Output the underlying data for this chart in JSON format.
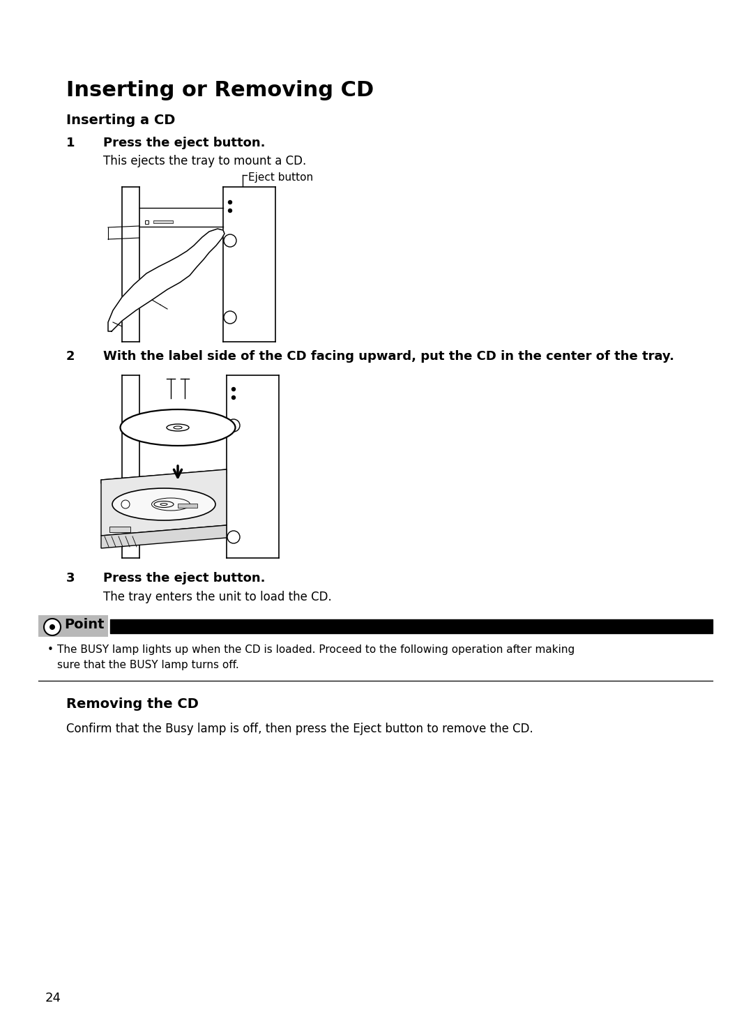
{
  "title": "Inserting or Removing CD",
  "subtitle": "Inserting a CD",
  "step1_bold": "Press the eject button.",
  "step1_text": "This ejects the tray to mount a CD.",
  "eject_label": "Eject button",
  "step2_bold": "With the label side of the CD facing upward, put the CD in the center of the tray.",
  "step3_bold": "Press the eject button.",
  "step3_text": "The tray enters the unit to load the CD.",
  "point_label": "Point",
  "point_line1": "The BUSY lamp lights up when the CD is loaded. Proceed to the following operation after making",
  "point_line2": "sure that the BUSY lamp turns off.",
  "removing_title": "Removing the CD",
  "removing_text": "Confirm that the Busy lamp is off, then press the Eject button to remove the CD.",
  "page_number": "24",
  "bg_color": "#ffffff",
  "point_bg": "#b8b8b8"
}
